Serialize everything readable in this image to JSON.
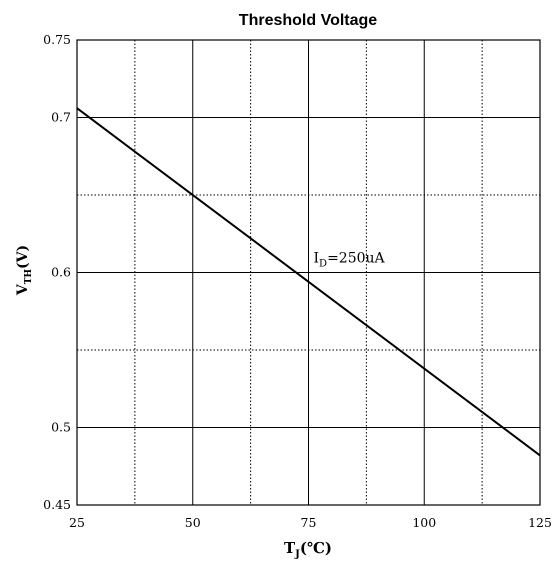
{
  "chart_data": {
    "type": "line",
    "title": "Threshold Voltage",
    "xlabel": {
      "main": "T",
      "sub": "J",
      "unit": "(℃)"
    },
    "ylabel": {
      "main": "V",
      "sub": "TH",
      "unit": "(V)"
    },
    "xlim": [
      25,
      125
    ],
    "ylim": [
      0.45,
      0.75
    ],
    "x_ticks": [
      25,
      50,
      75,
      100,
      125
    ],
    "x_tick_labels": [
      "25",
      "50",
      "75",
      "100",
      "125"
    ],
    "y_ticks": [
      0.45,
      0.5,
      0.6,
      0.7,
      0.75
    ],
    "y_tick_labels": [
      "0.45",
      "0.5",
      "0.6",
      "0.7",
      "0.75"
    ],
    "x_minor_grid": [
      37.5,
      62.5,
      87.5,
      112.5
    ],
    "y_minor_grid": [
      0.65,
      0.55
    ],
    "grid": true,
    "series": [
      {
        "x": [
          25,
          125
        ],
        "y": [
          0.706,
          0.482
        ]
      }
    ],
    "annotation": {
      "main": "I",
      "sub": "D",
      "rest": "=250uA",
      "x": 75,
      "y": 0.6
    }
  }
}
